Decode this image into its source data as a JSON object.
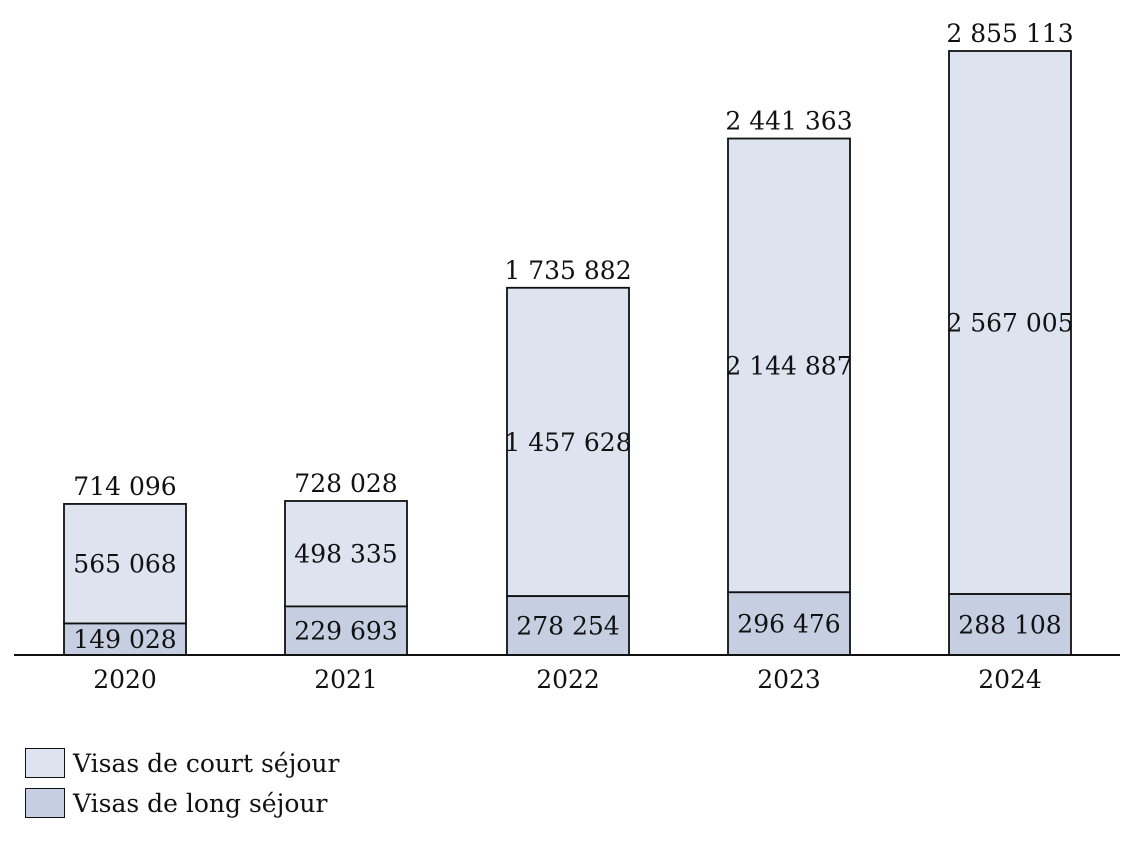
{
  "chart_data": {
    "type": "bar",
    "stacked": true,
    "categories": [
      "2020",
      "2021",
      "2022",
      "2023",
      "2024"
    ],
    "series": [
      {
        "name": "Visas de long séjour",
        "values": [
          149028,
          229693,
          278254,
          296476,
          288108
        ],
        "labels": [
          "149 028",
          "229 693",
          "278 254",
          "296 476",
          "288 108"
        ],
        "color": "#c5cfe1"
      },
      {
        "name": "Visas de court séjour",
        "values": [
          565068,
          498335,
          1457628,
          2144887,
          2567005
        ],
        "labels": [
          "565 068",
          "498 335",
          "1 457 628",
          "2 144 887",
          "2 567 005"
        ],
        "color": "#dde4ef"
      }
    ],
    "totals": [
      714096,
      728028,
      1735882,
      2441363,
      2855113
    ],
    "total_labels": [
      "714 096",
      "728 028",
      "1 735 882",
      "2 441 363",
      "2 855 113"
    ],
    "xlabel": "",
    "ylabel": "",
    "ylim": [
      0,
      2855113
    ],
    "grid": false,
    "legend_position": "bottom-left"
  },
  "legend": {
    "short_stay": {
      "label": "Visas de court séjour",
      "color": "#dde4ef"
    },
    "long_stay": {
      "label": "Visas de long séjour",
      "color": "#c5cfe1"
    }
  }
}
